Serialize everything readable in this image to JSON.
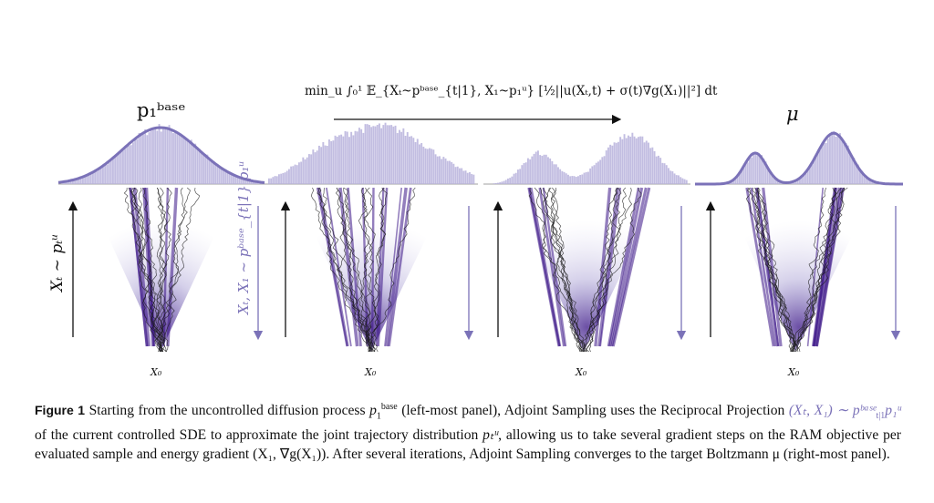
{
  "figure": {
    "labels": {
      "p1_base": "p₁ᵇᵃˢᵉ",
      "objective": "min_u ∫₀¹ 𝔼_{Xₜ~pᵇᵃˢᵉ_{t|1}, X₁~p₁ᵘ} [½||u(Xₜ,t) + σ(t)∇g(X₁)||²] dt",
      "mu": "μ",
      "forward_axis": "Xₜ ~ pₜᵘ",
      "reciprocal_axis": "Xₜ, X₁ ~ pᵇᵃˢᵉ_{t|1} p₁ᵘ",
      "x0_label": "X₀"
    },
    "colors": {
      "density": "#7b72b8",
      "histogram": "#b7b1dc",
      "heat": "#3a1486",
      "paths": "#1a1a1a",
      "reciprocal_text": "#7b72b8"
    }
  },
  "caption": {
    "label": "Figure 1",
    "seg1": " Starting from the uncontrolled diffusion process ",
    "p1": "p",
    "p1_sub": "1",
    "p1_sup": "base",
    "seg2": " (left-most panel), Adjoint Sampling uses the Reciprocal Projection ",
    "proj": "(Xₜ, X₁) ∼ pᵇᵃˢᵉ",
    "proj_sub": "t|1",
    "proj_tail": "p₁ᵘ",
    "seg3": " of the current controlled SDE to approximate the joint trajectory distribution ",
    "pt": "pₜᵘ",
    "seg4": ", allowing us to take several gradient steps on the RAM objective per evaluated sample and energy gradient (X₁, ∇g(X₁)). After several iterations, Adjoint Sampling converges to the target Boltzmann μ (right-most panel)."
  }
}
